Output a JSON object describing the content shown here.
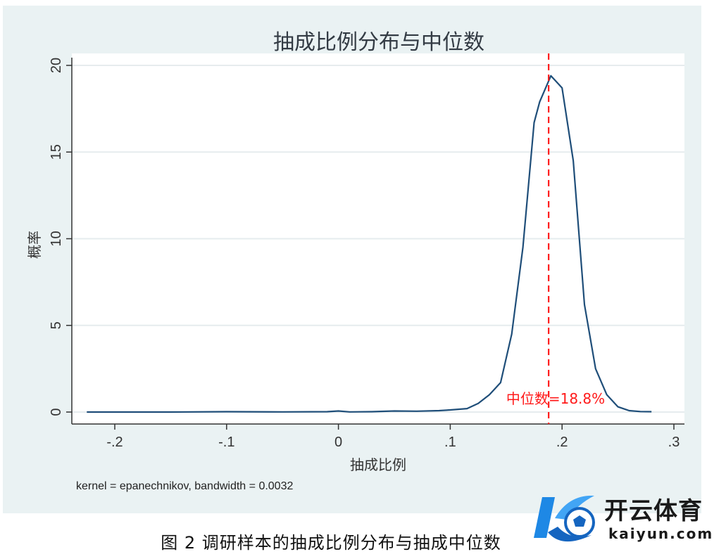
{
  "chart_data": {
    "type": "line",
    "title": "抽成比例分布与中位数",
    "xlabel": "抽成比例",
    "ylabel": "概率",
    "xlim": [
      -0.25,
      0.31
    ],
    "ylim": [
      0,
      20
    ],
    "xticks": [
      -0.2,
      -0.1,
      0,
      0.1,
      0.2,
      0.3
    ],
    "xtick_labels": [
      "-.2",
      "-.1",
      "0",
      ".1",
      ".2",
      ".3"
    ],
    "yticks": [
      0,
      5,
      10,
      15,
      20
    ],
    "ytick_labels": [
      "0",
      "5",
      "10",
      "15",
      "20"
    ],
    "grid": true,
    "series": [
      {
        "x": [
          -0.225,
          -0.2,
          -0.15,
          -0.1,
          -0.05,
          -0.01,
          0.0,
          0.01,
          0.03,
          0.05,
          0.07,
          0.09,
          0.1,
          0.115,
          0.125,
          0.135,
          0.145,
          0.155,
          0.165,
          0.175,
          0.18,
          0.19,
          0.2,
          0.21,
          0.22,
          0.23,
          0.24,
          0.25,
          0.26,
          0.27,
          0.28
        ],
        "y": [
          0.0,
          0.0,
          0.0,
          0.02,
          0.01,
          0.02,
          0.06,
          0.01,
          0.02,
          0.06,
          0.05,
          0.08,
          0.12,
          0.2,
          0.5,
          1.0,
          1.7,
          4.5,
          9.5,
          16.7,
          17.9,
          19.4,
          18.7,
          14.5,
          6.2,
          2.5,
          1.0,
          0.3,
          0.08,
          0.03,
          0.02
        ],
        "color": "#1f4e79"
      }
    ],
    "median": {
      "value": 0.188,
      "label": "中位数=18.8%",
      "color": "#ff1a1a"
    },
    "note": "kernel = epanechnikov, bandwidth = 0.0032"
  },
  "caption": "图 2 调研样本的抽成比例分布与抽成中位数",
  "logo": {
    "text": "开云体育",
    "sub": "kaiyun.com",
    "color": "#1565c0"
  }
}
